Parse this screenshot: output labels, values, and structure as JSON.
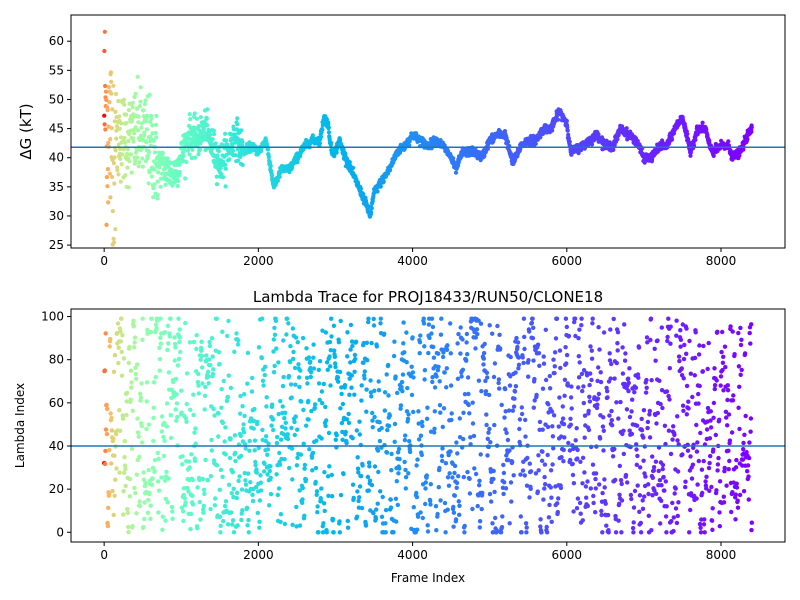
{
  "chart_data": [
    {
      "type": "scatter",
      "title": "",
      "xlabel": "",
      "ylabel": "ΔG (kT)",
      "xlim": [
        -430,
        8830
      ],
      "ylim": [
        24.5,
        64.5
      ],
      "xticks": [
        0,
        2000,
        4000,
        6000,
        8000
      ],
      "yticks": [
        25,
        30,
        35,
        40,
        45,
        50,
        55,
        60
      ],
      "hline": 41.8,
      "hline_color": "#1f77b4",
      "colormap": "rainbow (reversed by frame: red at start, violet at end)",
      "grid": false,
      "x_max": 8400,
      "trace_keypoints": [
        [
          0,
          50
        ],
        [
          60,
          44
        ],
        [
          120,
          42
        ],
        [
          200,
          44
        ],
        [
          300,
          43
        ],
        [
          420,
          44
        ],
        [
          560,
          43
        ],
        [
          700,
          39
        ],
        [
          800,
          38
        ],
        [
          900,
          37
        ],
        [
          1000,
          40
        ],
        [
          1100,
          44
        ],
        [
          1200,
          43
        ],
        [
          1300,
          45
        ],
        [
          1400,
          42
        ],
        [
          1500,
          39
        ],
        [
          1600,
          41
        ],
        [
          1700,
          44
        ],
        [
          1800,
          41
        ],
        [
          1900,
          42
        ],
        [
          2000,
          41
        ],
        [
          2100,
          43
        ],
        [
          2200,
          35
        ],
        [
          2300,
          38
        ],
        [
          2400,
          38
        ],
        [
          2500,
          40
        ],
        [
          2600,
          42
        ],
        [
          2700,
          43
        ],
        [
          2800,
          43
        ],
        [
          2850,
          47
        ],
        [
          2900,
          46
        ],
        [
          2950,
          41
        ],
        [
          3000,
          41
        ],
        [
          3050,
          43
        ],
        [
          3100,
          41
        ],
        [
          3200,
          38
        ],
        [
          3300,
          35
        ],
        [
          3400,
          32
        ],
        [
          3450,
          30
        ],
        [
          3500,
          34
        ],
        [
          3600,
          36
        ],
        [
          3700,
          38
        ],
        [
          3800,
          41
        ],
        [
          3900,
          42
        ],
        [
          4000,
          44
        ],
        [
          4100,
          43
        ],
        [
          4200,
          42
        ],
        [
          4300,
          43
        ],
        [
          4400,
          42
        ],
        [
          4500,
          40
        ],
        [
          4560,
          38
        ],
        [
          4650,
          41
        ],
        [
          4800,
          41
        ],
        [
          4900,
          40
        ],
        [
          5000,
          43
        ],
        [
          5100,
          44
        ],
        [
          5200,
          44
        ],
        [
          5300,
          39
        ],
        [
          5400,
          42
        ],
        [
          5500,
          43
        ],
        [
          5600,
          43
        ],
        [
          5700,
          45
        ],
        [
          5800,
          45
        ],
        [
          5900,
          48
        ],
        [
          6000,
          46
        ],
        [
          6050,
          41
        ],
        [
          6200,
          42
        ],
        [
          6400,
          44
        ],
        [
          6500,
          42
        ],
        [
          6600,
          42
        ],
        [
          6700,
          45
        ],
        [
          6800,
          44
        ],
        [
          6900,
          43
        ],
        [
          7000,
          40
        ],
        [
          7100,
          40
        ],
        [
          7200,
          42
        ],
        [
          7300,
          42
        ],
        [
          7400,
          45
        ],
        [
          7500,
          47
        ],
        [
          7600,
          41
        ],
        [
          7700,
          45
        ],
        [
          7800,
          45
        ],
        [
          7850,
          42
        ],
        [
          7900,
          41
        ],
        [
          8000,
          42
        ],
        [
          8100,
          42
        ],
        [
          8150,
          40
        ],
        [
          8250,
          41
        ],
        [
          8350,
          44
        ],
        [
          8400,
          45
        ]
      ]
    },
    {
      "type": "scatter",
      "title": "Lambda Trace for PROJ18433/RUN50/CLONE18",
      "xlabel": "Frame Index",
      "ylabel": "Lambda Index",
      "xlim": [
        -430,
        8830
      ],
      "ylim": [
        -4.5,
        103.5
      ],
      "xticks": [
        0,
        2000,
        4000,
        6000,
        8000
      ],
      "yticks": [
        0,
        20,
        40,
        60,
        80,
        100
      ],
      "hline": 40,
      "hline_color": "#1f77b4",
      "colormap": "rainbow (reversed by frame: red at start, violet at end)",
      "grid": false,
      "x_max": 8400,
      "lambda_range": [
        0,
        99
      ]
    }
  ]
}
